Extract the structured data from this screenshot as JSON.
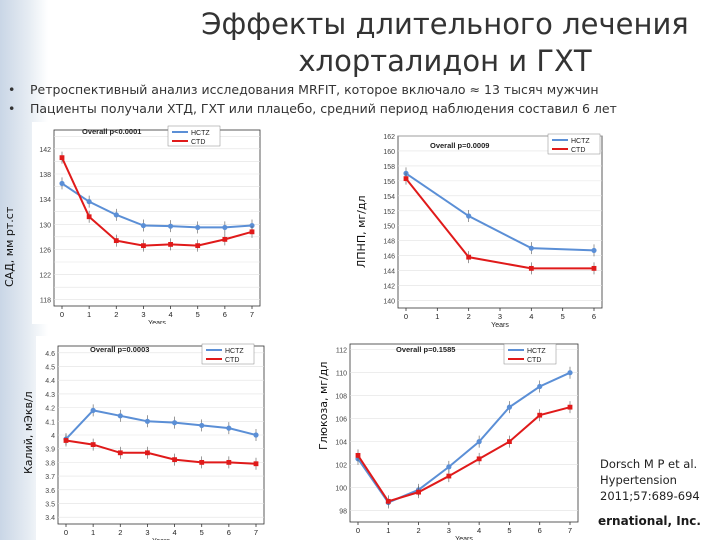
{
  "slide": {
    "title": "Эффекты длительного лечения хлорталидон и ГХТ",
    "bullets": [
      "Ретроспективный анализ исследования MRFIT, которое включало ≈ 13 тысяч мужчин",
      "Пациенты получали ХТД, ГХТ или плацебо, средний период наблюдения составил 6 лет"
    ],
    "citation": "Dorsch M P et al. Hypertension 2011;57:689-694",
    "footer_brand": "ernational, Inc."
  },
  "colors": {
    "hctz": "#5b8fd6",
    "ctd": "#e01a1a"
  },
  "chart_data": [
    {
      "type": "line",
      "ylabel": "САД, мм рт.ст",
      "xlabel": "Years",
      "overall": "Overall p<0.0001",
      "x": [
        0,
        1,
        2,
        3,
        4,
        5,
        6,
        7
      ],
      "yticks": [
        118,
        120,
        122,
        124,
        126,
        128,
        130,
        132,
        134,
        136,
        138,
        140,
        142,
        144
      ],
      "ylim": [
        117,
        145
      ],
      "series": [
        {
          "name": "HCTZ",
          "values": [
            136.5,
            133.6,
            131.5,
            129.8,
            129.7,
            129.5,
            129.5,
            129.8
          ]
        },
        {
          "name": "CTD",
          "values": [
            140.6,
            131.2,
            127.4,
            126.6,
            126.8,
            126.6,
            127.6,
            128.8
          ]
        }
      ]
    },
    {
      "type": "line",
      "ylabel": "ЛПНП, мг/дл",
      "xlabel": "Years",
      "overall": "Overall p=0.0009",
      "x": [
        0,
        2,
        4,
        6
      ],
      "xticks": [
        0,
        1,
        2,
        3,
        4,
        5,
        6
      ],
      "yticks": [
        140,
        142,
        144,
        146,
        148,
        150,
        152,
        154,
        156,
        158,
        160,
        162
      ],
      "ylim": [
        139,
        162
      ],
      "series": [
        {
          "name": "HCTZ",
          "values": [
            157,
            151.3,
            147,
            146.7
          ]
        },
        {
          "name": "CTD",
          "values": [
            156.3,
            145.8,
            144.3,
            144.3
          ]
        }
      ]
    },
    {
      "type": "line",
      "ylabel": "Калий, мЭкв/л",
      "xlabel": "Years",
      "overall": "Overall p=0.0003",
      "x": [
        0,
        1,
        2,
        3,
        4,
        5,
        6,
        7
      ],
      "yticks": [
        3.4,
        3.5,
        3.6,
        3.7,
        3.8,
        3.9,
        4.0,
        4.1,
        4.2,
        4.3,
        4.4,
        4.5,
        4.6
      ],
      "ylim": [
        3.35,
        4.65
      ],
      "series": [
        {
          "name": "HCTZ",
          "values": [
            3.97,
            4.18,
            4.14,
            4.1,
            4.09,
            4.07,
            4.05,
            4.0
          ]
        },
        {
          "name": "CTD",
          "values": [
            3.96,
            3.93,
            3.87,
            3.87,
            3.82,
            3.8,
            3.8,
            3.79
          ]
        }
      ]
    },
    {
      "type": "line",
      "ylabel": "Глюкоза, мг/дл",
      "xlabel": "Years",
      "overall": "Overall p=0.1585",
      "x": [
        0,
        1,
        2,
        3,
        4,
        5,
        6,
        7
      ],
      "yticks": [
        98,
        100,
        102,
        104,
        106,
        108,
        110,
        112
      ],
      "ylim": [
        97,
        112.5
      ],
      "series": [
        {
          "name": "HCTZ",
          "values": [
            102.5,
            98.7,
            99.8,
            101.8,
            104.0,
            107.0,
            108.8,
            110.0
          ]
        },
        {
          "name": "CTD",
          "values": [
            102.8,
            98.8,
            99.6,
            101.0,
            102.5,
            104.0,
            106.3,
            107.0
          ]
        }
      ]
    }
  ]
}
